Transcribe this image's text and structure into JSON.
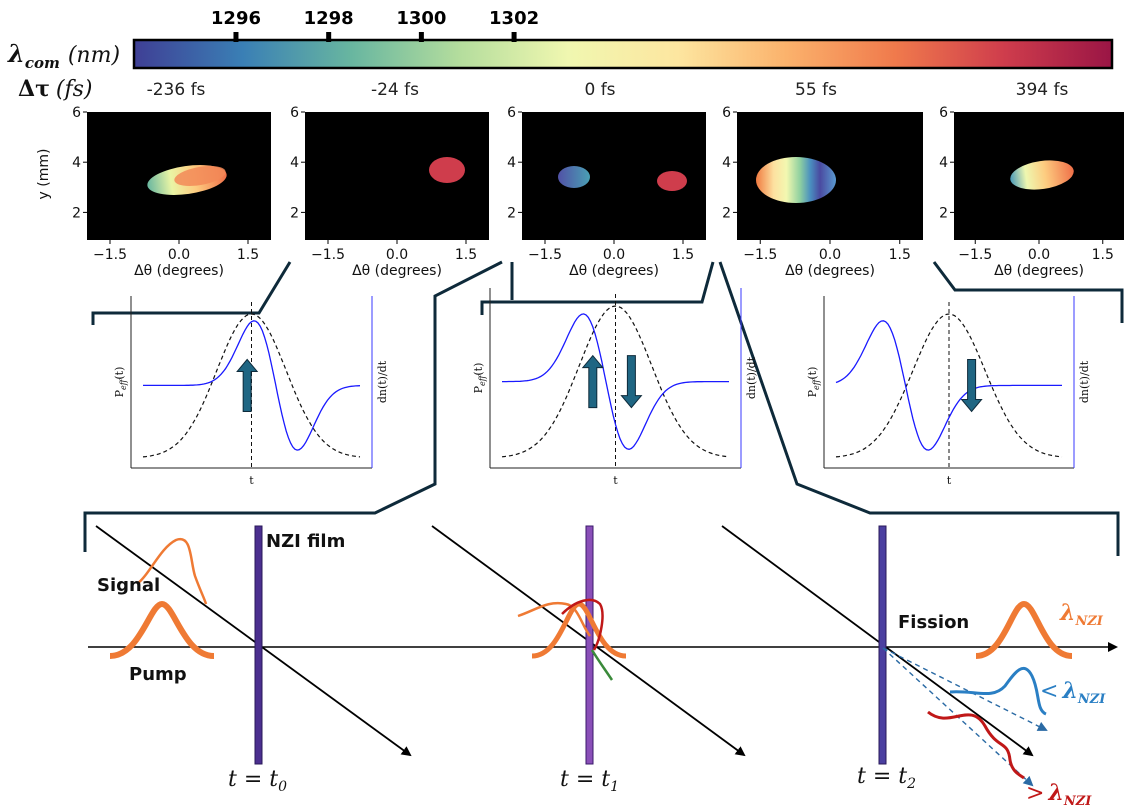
{
  "colorbar": {
    "label_symbol": "λ",
    "label_sub": "com",
    "label_unit": "(nm)",
    "ticks": [
      "1296",
      "1298",
      "1300",
      "1302"
    ],
    "tick_values": [
      1296,
      1298,
      1300,
      1302
    ],
    "range": [
      1293.8,
      1314.9
    ],
    "colors": [
      "#3f3f95",
      "#3a7fb5",
      "#68b6a0",
      "#b4dd9d",
      "#f0f7b0",
      "#fde6a0",
      "#fbb26c",
      "#f07a4c",
      "#cf3d4c",
      "#9a1545"
    ]
  },
  "delay_row": {
    "label_symbol": "Δτ",
    "label_unit": "(fs)",
    "values": [
      "-236 fs",
      "-24 fs",
      "0 fs",
      "55 fs",
      "394 fs"
    ]
  },
  "image_panels": {
    "ylabel": "y (mm)",
    "xlabel": "Δθ (degrees)",
    "yticks": [
      "2",
      "4",
      "6"
    ],
    "xticks": [
      "−1.5",
      "0.0",
      "1.5"
    ],
    "panel_colors": {
      "p0": [
        "#68b6a0",
        "#e8f5a0",
        "#fde6a0",
        "#fbb26c",
        "#f07a4c"
      ],
      "p1": [
        "#cf3d4c",
        "#d44a50"
      ],
      "p2": [
        "#5a5aa8",
        "#4a8fb8",
        "#cf3d4c"
      ],
      "p3": [
        "#f0783f",
        "#fde0a0",
        "#f5f8b0",
        "#9fd6a0",
        "#4a9ab8",
        "#4a4aa0",
        "#4c8cc4"
      ],
      "p4": [
        "#4a9ab8",
        "#f0f7b0",
        "#fde6a0",
        "#fbb26c",
        "#f07a4c"
      ]
    }
  },
  "plots": {
    "ylabel_left_main": "P",
    "ylabel_left_sub": "eff",
    "ylabel_left_tail": "(t)",
    "ylabel_right": "dn(t)/dt",
    "xlabel": "t"
  },
  "bottom": {
    "film_label": "NZI film",
    "signal_label": "Signal",
    "pump_label": "Pump",
    "fission_label": "Fission",
    "lambda_symbol": "λ",
    "lambda_sub": "NZI",
    "less_than": "<",
    "greater_than": ">",
    "time_labels": [
      {
        "prefix": "t = t",
        "sub": "0"
      },
      {
        "prefix": "t = t",
        "sub": "1"
      },
      {
        "prefix": "t = t",
        "sub": "2"
      }
    ],
    "colors": {
      "pump": "#ef7a34",
      "blue_wave": "#2a7fc4",
      "red_wave": "#c01818",
      "green_wave": "#3a8a3a",
      "film": "#4b2f8f",
      "lambda_blue": "#2a7fc4",
      "lambda_red": "#c01818"
    }
  },
  "colors": {
    "connector": "#0e2a3a",
    "arrow": "#1f6683",
    "pulse_curve": "#1a1aff"
  }
}
